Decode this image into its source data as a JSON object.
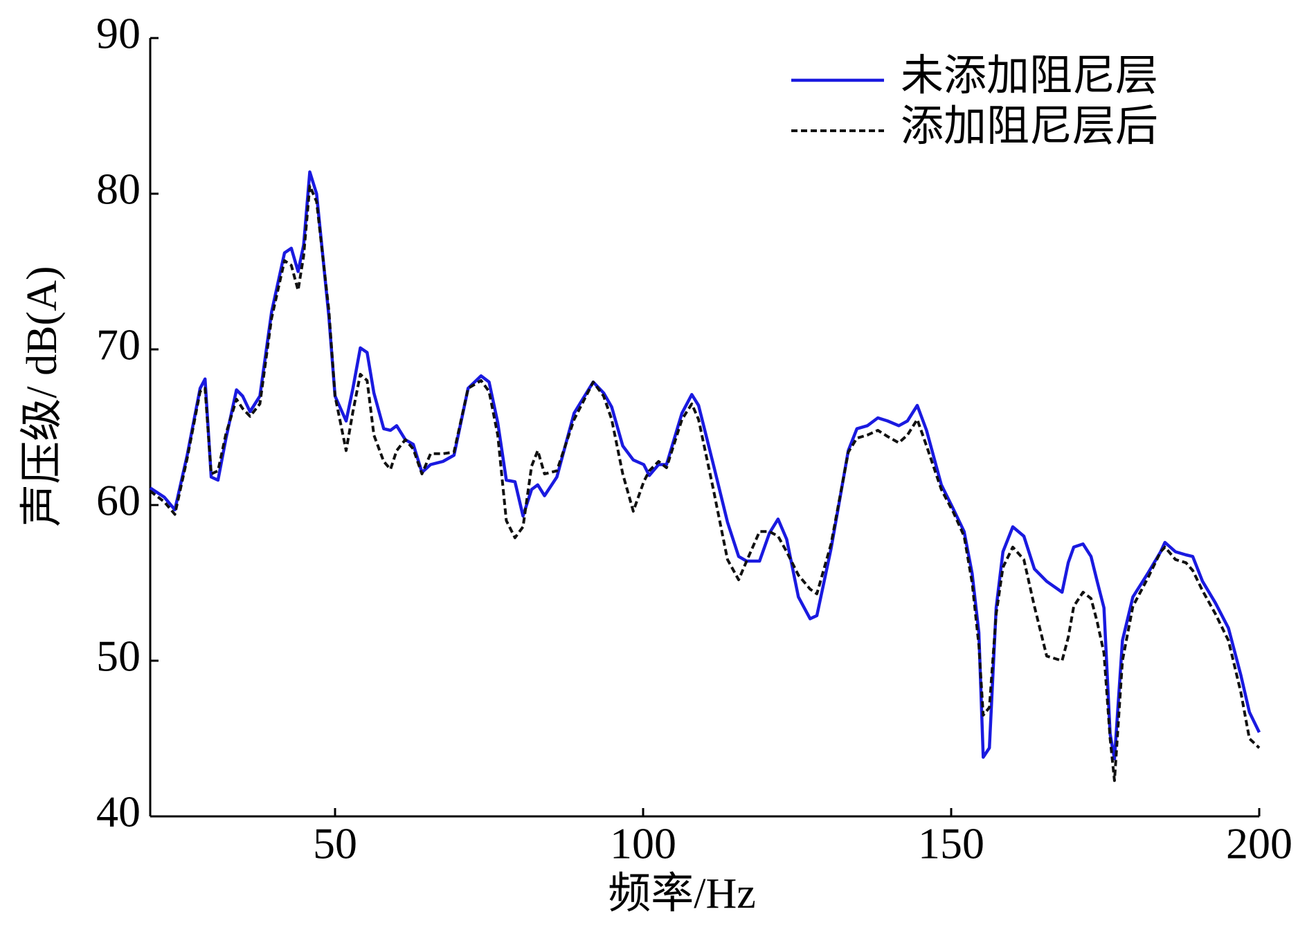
{
  "chart_data": {
    "type": "line",
    "xlabel": "频率/Hz",
    "ylabel": "声压级/ dB(A)",
    "x": [
      20,
      22.3,
      24,
      26,
      28.1,
      28.9,
      29.9,
      31,
      32.3,
      34,
      35,
      36.2,
      37.8,
      39.7,
      41.8,
      42.9,
      44,
      44.9,
      45.9,
      47,
      49,
      50,
      51.8,
      52.9,
      54.1,
      55.2,
      56.3,
      57.9,
      59,
      60,
      61.4,
      62.7,
      64.1,
      65.5,
      67.5,
      69.3,
      71.6,
      73.7,
      75,
      76.4,
      77.8,
      79.2,
      80.5,
      81.9,
      82.9,
      84,
      86,
      88.8,
      91.9,
      93.6,
      94.9,
      96.7,
      98.4,
      100.1,
      101,
      102.5,
      103.8,
      106.3,
      107.9,
      109,
      111.4,
      113.7,
      115.5,
      116.8,
      118.9,
      120.5,
      121.9,
      123.3,
      125.2,
      127.1,
      128.2,
      130.5,
      133.3,
      134.7,
      136.4,
      138.1,
      139.7,
      141.5,
      142.9,
      144.5,
      146,
      148.4,
      150.4,
      152.1,
      153.4,
      154.5,
      155.2,
      156.2,
      157.3,
      158.4,
      160,
      161.8,
      163.5,
      165.5,
      168,
      169,
      169.9,
      171.4,
      172.7,
      173.7,
      174.8,
      175.8,
      176.5,
      177.8,
      179.5,
      181.9,
      184,
      184.7,
      186.4,
      188.1,
      189.2,
      190.8,
      192.9,
      195,
      197,
      198.4,
      200
    ],
    "series": [
      {
        "name": "未添加阻尼层",
        "color": "#1a1ae0",
        "dash": false,
        "values": [
          61.1,
          60.5,
          59.7,
          63.2,
          67.5,
          68.1,
          61.8,
          61.6,
          64.3,
          67.4,
          67,
          66,
          67,
          72.4,
          76.2,
          76.5,
          75,
          76.7,
          81.4,
          80,
          72.1,
          67,
          65.4,
          67.5,
          70.1,
          69.8,
          67.2,
          64.9,
          64.8,
          65.1,
          64.2,
          63.9,
          62.1,
          62.6,
          62.8,
          63.2,
          67.5,
          68.3,
          67.9,
          65.3,
          61.6,
          61.5,
          59.3,
          61,
          61.3,
          60.6,
          61.8,
          65.9,
          67.9,
          67.2,
          66.3,
          63.8,
          62.9,
          62.6,
          61.9,
          62.6,
          62.6,
          65.9,
          67.1,
          66.4,
          62.6,
          58.9,
          56.7,
          56.4,
          56.4,
          58.2,
          59.1,
          57.8,
          54.1,
          52.7,
          52.9,
          57.2,
          63.5,
          64.9,
          65.1,
          65.6,
          65.4,
          65.1,
          65.4,
          66.4,
          64.8,
          61.3,
          59.7,
          58.3,
          55.6,
          51.8,
          43.8,
          44.4,
          53.4,
          57,
          58.6,
          58,
          55.9,
          55.1,
          54.4,
          56.3,
          57.3,
          57.5,
          56.7,
          55.1,
          53.4,
          45.3,
          43.7,
          51.3,
          54.1,
          55.6,
          57,
          57.6,
          57,
          56.8,
          56.7,
          55.1,
          53.7,
          52.1,
          49.1,
          46.7,
          45.4
        ]
      },
      {
        "name": "添加阻尼层后",
        "color": "#111111",
        "dash": true,
        "values": [
          60.9,
          60.2,
          59.4,
          63,
          67.3,
          67.5,
          62,
          62.2,
          64.6,
          66.8,
          66.2,
          65.7,
          66.5,
          72,
          75.7,
          75.4,
          73.8,
          76,
          80.5,
          79.5,
          72.5,
          67,
          63.5,
          66,
          68.4,
          68,
          64.5,
          62.8,
          62.3,
          63.5,
          64.2,
          63.6,
          62,
          63.3,
          63.3,
          63.4,
          67.5,
          68,
          67.3,
          64.5,
          59,
          57.9,
          58.6,
          62.5,
          63.5,
          62,
          62.2,
          65.5,
          67.9,
          67,
          65.5,
          62,
          59.6,
          61.5,
          62.2,
          62.8,
          62.4,
          65.5,
          66.5,
          65.5,
          61,
          56.5,
          55.2,
          56.4,
          58.3,
          58.3,
          58,
          57,
          55.5,
          54.6,
          54.3,
          57.5,
          63.4,
          64.3,
          64.5,
          64.8,
          64.4,
          64,
          64.5,
          65.5,
          63.8,
          61,
          59.5,
          58,
          55,
          51,
          46.5,
          47,
          53,
          56,
          57.3,
          56.5,
          53.5,
          50.3,
          50,
          51.5,
          53.5,
          54.4,
          54,
          52.5,
          50.5,
          45,
          42.3,
          50,
          53.5,
          55.3,
          57,
          57.3,
          56.5,
          56.3,
          55.8,
          54.5,
          53,
          51.3,
          48,
          45,
          44.4
        ]
      }
    ],
    "xlim": [
      20,
      200
    ],
    "xticks": [
      50,
      100,
      150,
      200
    ],
    "ylim": [
      40,
      90
    ],
    "yticks": [
      40,
      50,
      60,
      70,
      80,
      90
    ],
    "grid": false,
    "legend": "upper right"
  }
}
